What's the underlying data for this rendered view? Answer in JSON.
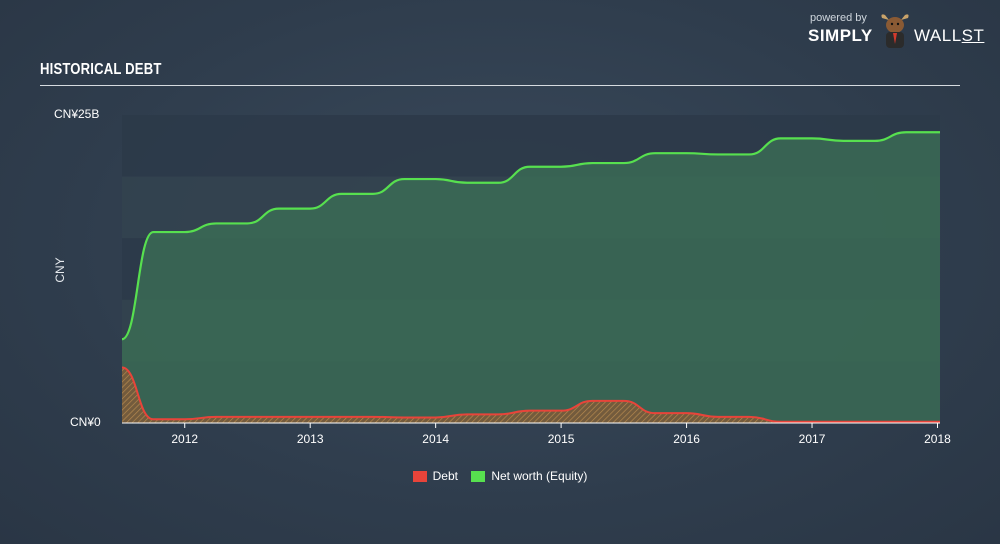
{
  "header": {
    "title": "HISTORICAL DEBT"
  },
  "brand": {
    "powered_by": "powered by",
    "name_a": "SIMPLY",
    "name_b": "WALL",
    "name_c": "ST"
  },
  "chart_data": {
    "type": "area",
    "title": "HISTORICAL DEBT",
    "ylabel": "CNY",
    "xlabel": "",
    "ylim": [
      0,
      25
    ],
    "xlim": [
      2011.5,
      2018.02
    ],
    "y_unit": "CNY billions",
    "y_tick_labels": [
      "CN¥25B",
      "CN¥0"
    ],
    "x_tick_labels": [
      "2012",
      "2013",
      "2014",
      "2015",
      "2016",
      "2017",
      "2018"
    ],
    "x_ticks": [
      2012,
      2013,
      2014,
      2015,
      2016,
      2017,
      2018
    ],
    "grid": true,
    "legend": "bottom-center",
    "series": [
      {
        "name": "Debt",
        "color": "#e8443a",
        "x": [
          2011.5,
          2011.75,
          2012.0,
          2012.25,
          2012.5,
          2012.75,
          2013.0,
          2013.25,
          2013.5,
          2013.75,
          2014.0,
          2014.25,
          2014.5,
          2014.75,
          2015.0,
          2015.25,
          2015.5,
          2015.75,
          2016.0,
          2016.25,
          2016.5,
          2016.75,
          2017.0,
          2017.25,
          2017.5,
          2017.75,
          2018.02
        ],
        "values": [
          4.5,
          0.3,
          0.3,
          0.5,
          0.5,
          0.5,
          0.5,
          0.5,
          0.5,
          0.45,
          0.45,
          0.7,
          0.7,
          1.0,
          1.0,
          1.8,
          1.8,
          0.8,
          0.8,
          0.5,
          0.5,
          0.1,
          0.1,
          0.1,
          0.1,
          0.1,
          0.1
        ]
      },
      {
        "name": "Net worth (Equity)",
        "color": "#57e04f",
        "x": [
          2011.5,
          2011.75,
          2012.0,
          2012.25,
          2012.5,
          2012.75,
          2013.0,
          2013.25,
          2013.5,
          2013.75,
          2014.0,
          2014.25,
          2014.5,
          2014.75,
          2015.0,
          2015.25,
          2015.5,
          2015.75,
          2016.0,
          2016.25,
          2016.5,
          2016.75,
          2017.0,
          2017.25,
          2017.5,
          2017.75,
          2018.02
        ],
        "values": [
          6.8,
          15.5,
          15.5,
          16.2,
          16.2,
          17.4,
          17.4,
          18.6,
          18.6,
          19.8,
          19.8,
          19.5,
          19.5,
          20.8,
          20.8,
          21.1,
          21.1,
          21.9,
          21.9,
          21.8,
          21.8,
          23.1,
          23.1,
          22.9,
          22.9,
          23.6,
          23.6
        ]
      }
    ]
  }
}
